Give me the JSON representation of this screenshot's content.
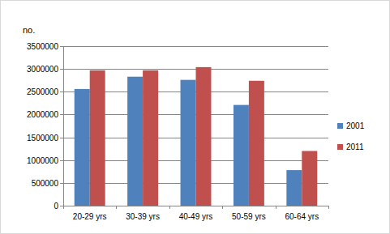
{
  "chart_data": {
    "type": "bar",
    "y_label": "no.",
    "categories": [
      "20-29 yrs",
      "30-39 yrs",
      "40-49 yrs",
      "50-59 yrs",
      "60-64 yrs"
    ],
    "series": [
      {
        "name": "2001",
        "color": "#4f81bd",
        "values": [
          2560000,
          2830000,
          2760000,
          2210000,
          780000
        ]
      },
      {
        "name": "2011",
        "color": "#c0504d",
        "values": [
          2970000,
          2970000,
          3040000,
          2740000,
          1200000
        ]
      }
    ],
    "ylim": [
      0,
      3500000
    ],
    "yticks": [
      0,
      500000,
      1000000,
      1500000,
      2000000,
      2500000,
      3000000,
      3500000
    ],
    "grid": true,
    "legend": "right"
  }
}
